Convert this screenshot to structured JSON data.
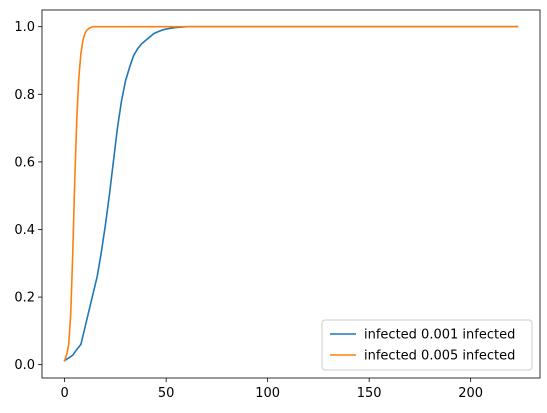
{
  "chart_data": {
    "type": "line",
    "title": "",
    "xlabel": "",
    "ylabel": "",
    "xlim": [
      -11.15,
      234.15
    ],
    "ylim": [
      -0.0394,
      1.0494
    ],
    "xticks": [
      0,
      50,
      100,
      150,
      200
    ],
    "yticks": [
      0.0,
      0.2,
      0.4,
      0.6,
      0.8,
      1.0
    ],
    "xtick_labels": [
      "0",
      "50",
      "100",
      "150",
      "200"
    ],
    "ytick_labels": [
      "0.0",
      "0.2",
      "0.4",
      "0.6",
      "0.8",
      "1.0"
    ],
    "grid": false,
    "legend_position": "lower right",
    "series": [
      {
        "name": "infected 0.001 infected",
        "color": "#1f77b4",
        "x": [
          0,
          2,
          4,
          6,
          8,
          10,
          12,
          14,
          16,
          18,
          20,
          22,
          24,
          26,
          28,
          30,
          32,
          34,
          36,
          38,
          40,
          42,
          44,
          46,
          48,
          50,
          52,
          54,
          56,
          58,
          60,
          65,
          70,
          80,
          100,
          150,
          200,
          223
        ],
        "y": [
          0.012,
          0.02,
          0.028,
          0.045,
          0.06,
          0.11,
          0.16,
          0.21,
          0.26,
          0.33,
          0.41,
          0.5,
          0.6,
          0.7,
          0.78,
          0.84,
          0.88,
          0.915,
          0.935,
          0.95,
          0.96,
          0.97,
          0.98,
          0.985,
          0.99,
          0.993,
          0.995,
          0.997,
          0.998,
          0.999,
          1.0,
          1.0,
          1.0,
          1.0,
          1.0,
          1.0,
          1.0,
          1.0
        ]
      },
      {
        "name": "infected 0.005 infected",
        "color": "#ff7f0e",
        "x": [
          0,
          1,
          2,
          3,
          4,
          5,
          6,
          7,
          8,
          9,
          10,
          11,
          12,
          13,
          14,
          16,
          18,
          20,
          25,
          30,
          50,
          100,
          150,
          200,
          223
        ],
        "y": [
          0.012,
          0.03,
          0.06,
          0.15,
          0.33,
          0.55,
          0.73,
          0.85,
          0.92,
          0.96,
          0.98,
          0.99,
          0.995,
          0.998,
          1.0,
          1.0,
          1.0,
          1.0,
          1.0,
          1.0,
          1.0,
          1.0,
          1.0,
          1.0,
          1.0
        ]
      }
    ]
  }
}
